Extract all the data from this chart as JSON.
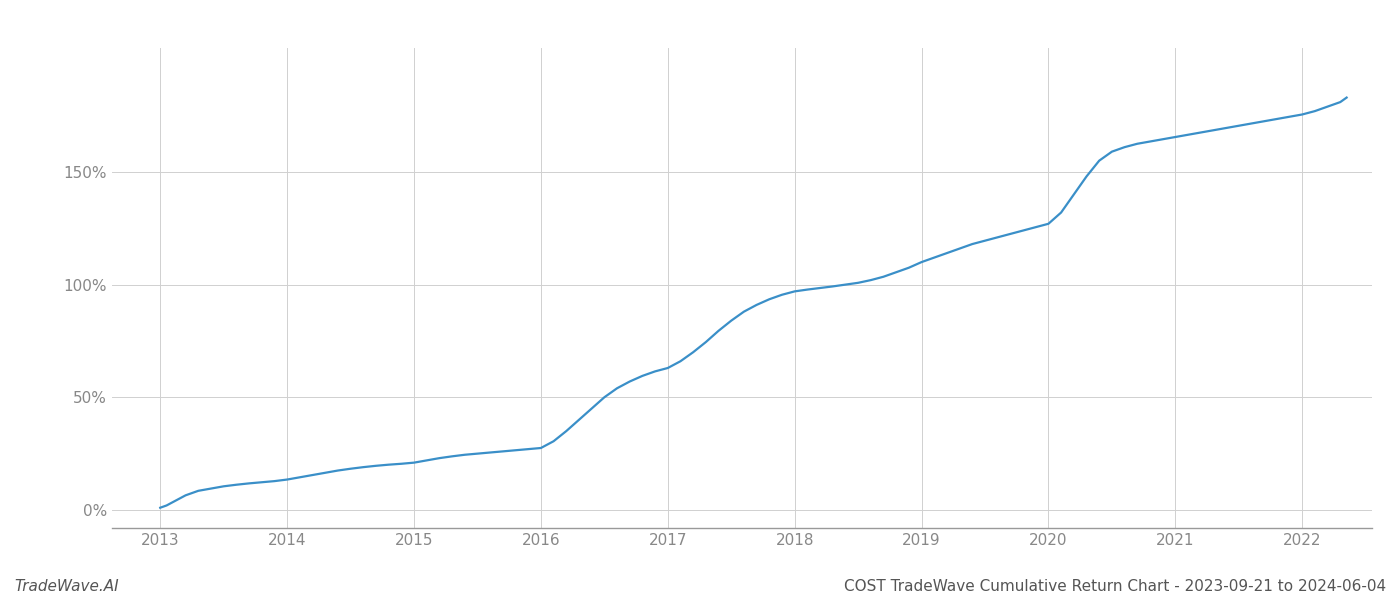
{
  "title": "COST TradeWave Cumulative Return Chart - 2023-09-21 to 2024-06-04",
  "watermark": "TradeWave.AI",
  "line_color": "#3a8fc8",
  "background_color": "#ffffff",
  "grid_color": "#d0d0d0",
  "x_years": [
    2013,
    2014,
    2015,
    2016,
    2017,
    2018,
    2019,
    2020,
    2021,
    2022
  ],
  "xlim_left": 2012.62,
  "xlim_right": 2022.55,
  "ylim": [
    -8,
    205
  ],
  "yticks": [
    0,
    50,
    100,
    150
  ],
  "ylabel_texts": [
    "0%",
    "50%",
    "100%",
    "150%"
  ],
  "title_color": "#555555",
  "watermark_color": "#555555",
  "axis_color": "#999999",
  "tick_color": "#888888",
  "line_width": 1.6,
  "title_fontsize": 11,
  "watermark_fontsize": 11,
  "data_x": [
    2013.0,
    2013.05,
    2013.1,
    2013.15,
    2013.2,
    2013.3,
    2013.4,
    2013.5,
    2013.6,
    2013.7,
    2013.8,
    2013.9,
    2014.0,
    2014.1,
    2014.2,
    2014.3,
    2014.4,
    2014.5,
    2014.6,
    2014.7,
    2014.8,
    2014.9,
    2015.0,
    2015.05,
    2015.1,
    2015.15,
    2015.2,
    2015.3,
    2015.4,
    2015.5,
    2015.6,
    2015.7,
    2015.8,
    2015.9,
    2016.0,
    2016.1,
    2016.2,
    2016.3,
    2016.4,
    2016.5,
    2016.6,
    2016.7,
    2016.8,
    2016.9,
    2017.0,
    2017.1,
    2017.2,
    2017.3,
    2017.4,
    2017.5,
    2017.6,
    2017.7,
    2017.8,
    2017.9,
    2018.0,
    2018.1,
    2018.2,
    2018.3,
    2018.4,
    2018.5,
    2018.6,
    2018.7,
    2018.8,
    2018.9,
    2019.0,
    2019.1,
    2019.2,
    2019.3,
    2019.4,
    2019.5,
    2019.6,
    2019.7,
    2019.8,
    2019.9,
    2020.0,
    2020.1,
    2020.2,
    2020.3,
    2020.4,
    2020.5,
    2020.6,
    2020.7,
    2020.8,
    2020.9,
    2021.0,
    2021.1,
    2021.2,
    2021.3,
    2021.4,
    2021.5,
    2021.6,
    2021.7,
    2021.8,
    2021.9,
    2022.0,
    2022.1,
    2022.2,
    2022.3,
    2022.35
  ],
  "data_y": [
    1.0,
    2.0,
    3.5,
    5.0,
    6.5,
    8.5,
    9.5,
    10.5,
    11.2,
    11.8,
    12.3,
    12.8,
    13.5,
    14.5,
    15.5,
    16.5,
    17.5,
    18.3,
    19.0,
    19.6,
    20.1,
    20.5,
    21.0,
    21.5,
    22.0,
    22.5,
    23.0,
    23.8,
    24.5,
    25.0,
    25.5,
    26.0,
    26.5,
    27.0,
    27.5,
    30.5,
    35.0,
    40.0,
    45.0,
    50.0,
    54.0,
    57.0,
    59.5,
    61.5,
    63.0,
    66.0,
    70.0,
    74.5,
    79.5,
    84.0,
    88.0,
    91.0,
    93.5,
    95.5,
    97.0,
    97.8,
    98.5,
    99.2,
    100.0,
    100.8,
    102.0,
    103.5,
    105.5,
    107.5,
    110.0,
    112.0,
    114.0,
    116.0,
    118.0,
    119.5,
    121.0,
    122.5,
    124.0,
    125.5,
    127.0,
    132.0,
    140.0,
    148.0,
    155.0,
    159.0,
    161.0,
    162.5,
    163.5,
    164.5,
    165.5,
    166.5,
    167.5,
    168.5,
    169.5,
    170.5,
    171.5,
    172.5,
    173.5,
    174.5,
    175.5,
    177.0,
    179.0,
    181.0,
    183.0
  ]
}
